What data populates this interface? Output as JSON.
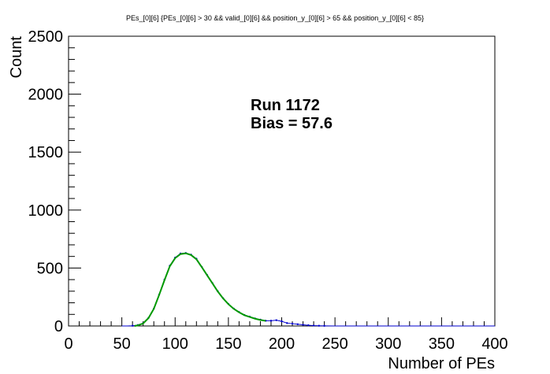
{
  "chart_data": {
    "type": "line",
    "title": "PEs_[0][6]  {PEs_[0][6] > 30 && valid_[0][6] && position_y_[0][6] > 65 && position_y_[0][6] < 85}",
    "xlabel": "Number of PEs",
    "ylabel": "Count",
    "xlim": [
      0,
      400
    ],
    "ylim": [
      0,
      2500
    ],
    "x_ticks": [
      0,
      50,
      100,
      150,
      200,
      250,
      300,
      350,
      400
    ],
    "y_ticks": [
      0,
      500,
      1000,
      1500,
      2000,
      2500
    ],
    "annotations": [
      "Run 1172",
      "Bias = 57.6"
    ],
    "series": [
      {
        "name": "histogram",
        "color": "#0000cc",
        "x": [
          50,
          55,
          60,
          65,
          70,
          75,
          80,
          85,
          90,
          95,
          100,
          105,
          110,
          115,
          120,
          125,
          130,
          135,
          140,
          145,
          150,
          155,
          160,
          165,
          170,
          175,
          180,
          185,
          190,
          195,
          200,
          205,
          210,
          215,
          220,
          225,
          230,
          235,
          240,
          250,
          300,
          350,
          400
        ],
        "values": [
          0,
          0,
          2,
          8,
          25,
          70,
          150,
          270,
          400,
          520,
          590,
          625,
          630,
          615,
          580,
          510,
          440,
          370,
          300,
          240,
          190,
          150,
          120,
          95,
          80,
          65,
          55,
          45,
          45,
          50,
          40,
          25,
          20,
          15,
          10,
          6,
          3,
          2,
          1,
          0,
          0,
          0,
          0
        ]
      },
      {
        "name": "fit",
        "color": "#009900",
        "x": [
          62,
          65,
          70,
          75,
          80,
          85,
          90,
          95,
          100,
          105,
          110,
          115,
          120,
          125,
          130,
          135,
          140,
          145,
          150,
          155,
          160,
          165,
          170,
          175,
          180,
          185
        ],
        "values": [
          0,
          5,
          22,
          68,
          148,
          268,
          395,
          515,
          585,
          620,
          627,
          612,
          575,
          508,
          438,
          368,
          298,
          238,
          188,
          148,
          118,
          93,
          78,
          63,
          52,
          44
        ]
      }
    ]
  }
}
